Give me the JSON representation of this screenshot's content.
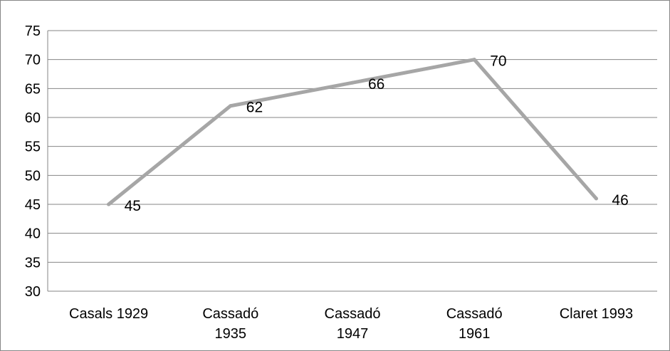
{
  "chart_data": {
    "type": "line",
    "title": "",
    "xlabel": "",
    "ylabel": "",
    "categories": [
      [
        "Casals 1929"
      ],
      [
        "Cassadó",
        "1935"
      ],
      [
        "Cassadó",
        "1947"
      ],
      [
        "Cassadó",
        "1961"
      ],
      [
        "Claret 1993"
      ]
    ],
    "series": [
      {
        "values": [
          45,
          62,
          66,
          70,
          46
        ]
      }
    ],
    "data_labels": [
      "45",
      "62",
      "66",
      "70",
      "46"
    ],
    "y_ticks": [
      "30",
      "35",
      "40",
      "45",
      "50",
      "55",
      "60",
      "65",
      "70",
      "75"
    ],
    "ylim": [
      30,
      75
    ],
    "grid": true,
    "legend": "none",
    "line_color": "#a6a6a6",
    "grid_color": "#868686"
  }
}
